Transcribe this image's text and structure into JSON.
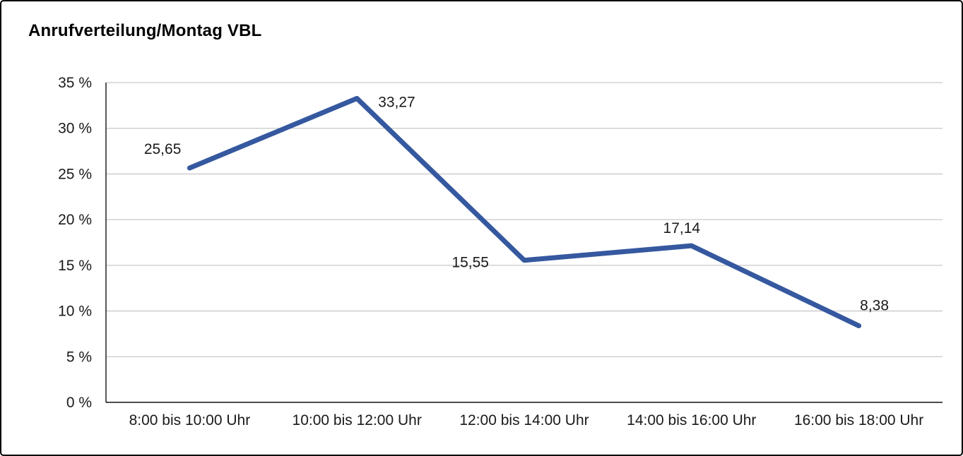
{
  "frame": {
    "background": "#ffffff",
    "border_color": "#000000"
  },
  "chart_data": {
    "type": "line",
    "title": "Anrufverteilung/Montag VBL",
    "categories": [
      "8:00 bis 10:00 Uhr",
      "10:00 bis 12:00 Uhr",
      "12:00 bis 14:00 Uhr",
      "14:00 bis 16:00 Uhr",
      "16:00 bis 18:00 Uhr"
    ],
    "values": [
      25.65,
      33.27,
      15.55,
      17.14,
      8.38
    ],
    "point_labels": [
      "25,65",
      "33,27",
      "15,55",
      "17,14",
      "8,38"
    ],
    "ylim": [
      0,
      35
    ],
    "ytick_step": 5,
    "ytick_labels": [
      "0 %",
      "5 %",
      "10 %",
      "15 %",
      "20 %",
      "25 %",
      "30 %",
      "35 %"
    ],
    "grid": true,
    "legend": "none",
    "xlabel": "",
    "ylabel": "",
    "line_color": "#35589f",
    "gridline_color": "#c9c9c9",
    "axis_color": "#111111",
    "text_color": "#1a1a1a"
  }
}
